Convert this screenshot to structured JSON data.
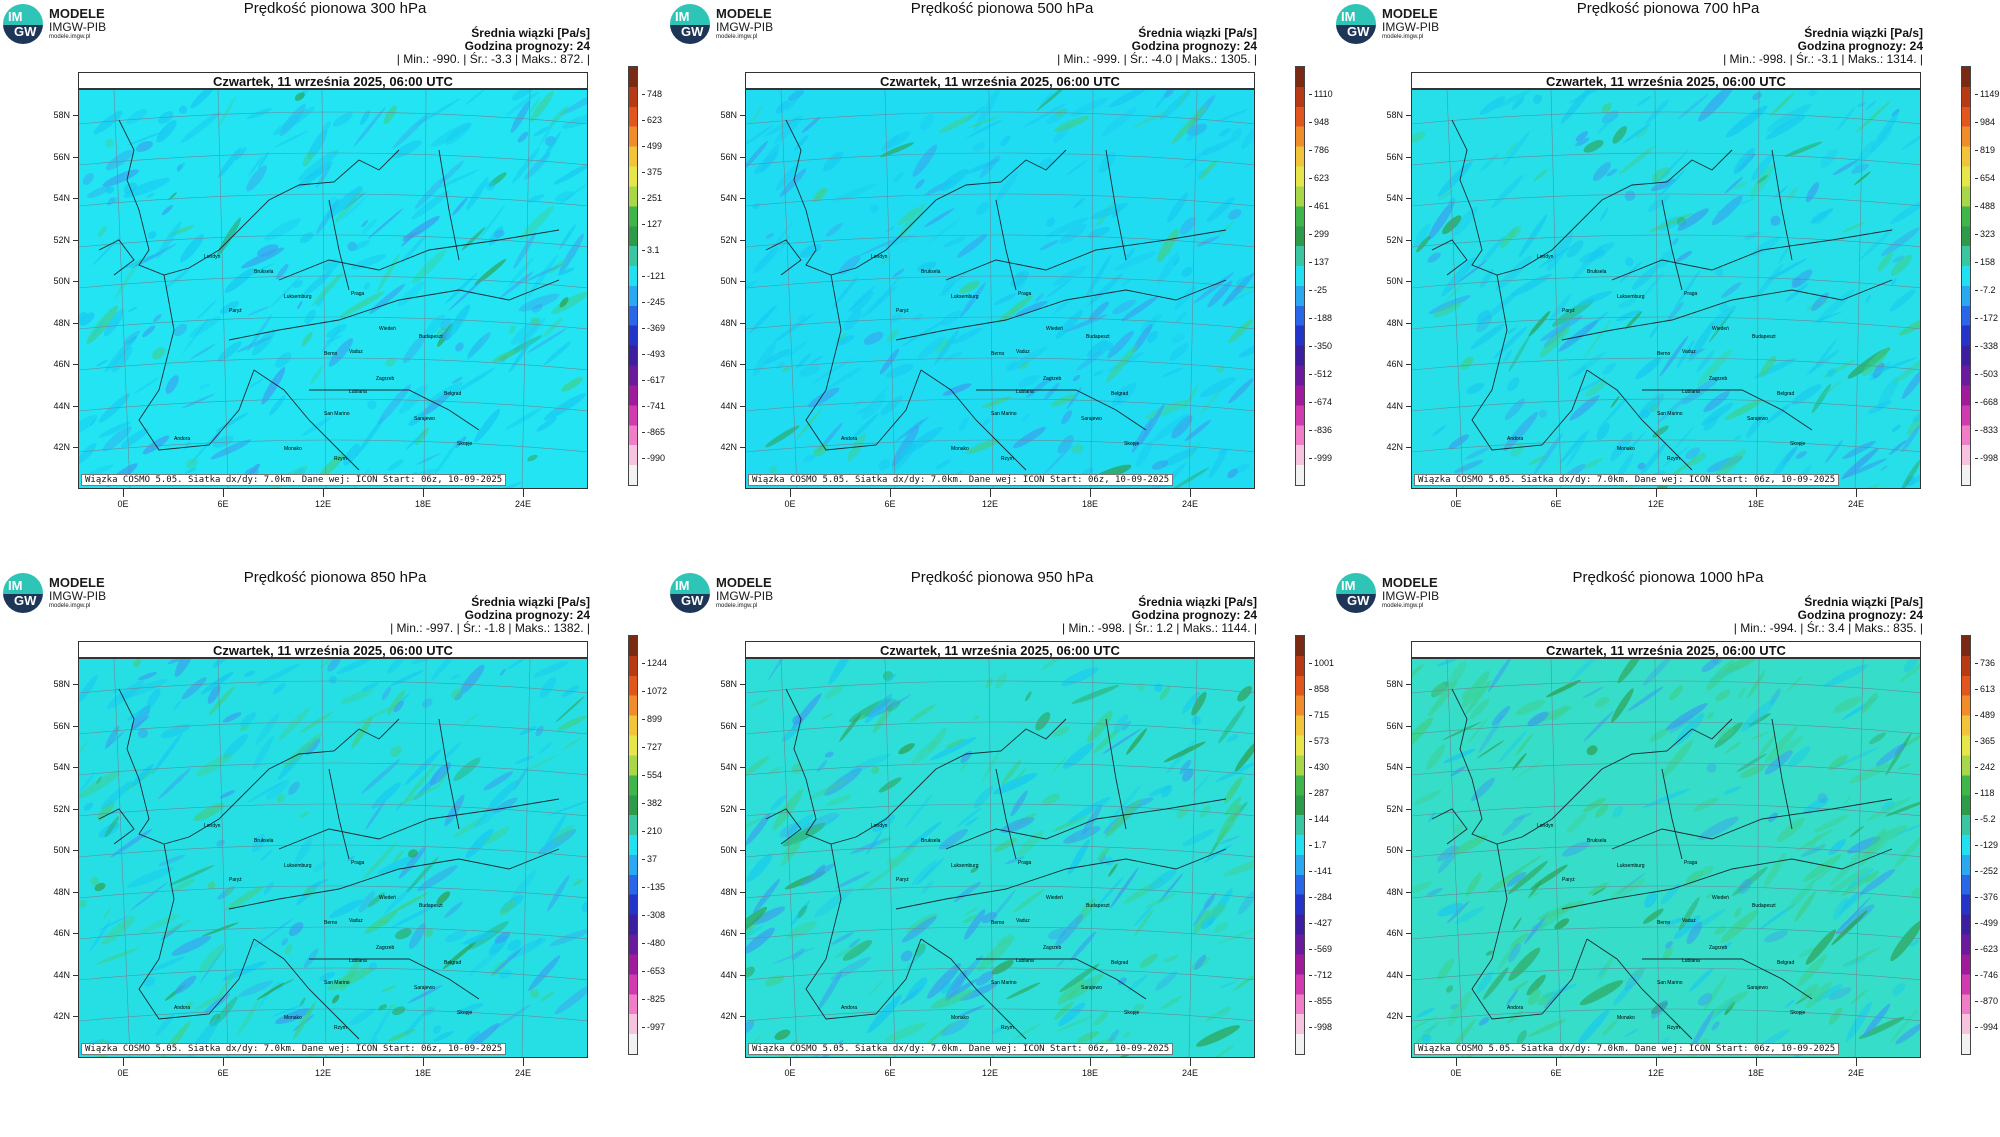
{
  "logo": {
    "line1": "MODELE",
    "line2": "IMGW-PIB",
    "line3": "modele.imgw.pl",
    "badge_top": "IM",
    "badge_bottom": "GW"
  },
  "common": {
    "subtitle": "Średnia wiązki [Pa/s]",
    "forecast_hour": "Godzina prognozy: 24",
    "date": "Czwartek, 11 września 2025, 06:00 UTC",
    "footer": "Wiązka COSMO 5.05. Siatka dx/dy: 7.0km. Dane wej: ICON Start: 06z, 10-09-2025",
    "lat_labels": [
      "58N",
      "56N",
      "54N",
      "52N",
      "50N",
      "48N",
      "46N",
      "44N",
      "42N"
    ],
    "lon_labels": [
      "0E",
      "6E",
      "12E",
      "18E",
      "24E"
    ],
    "cities": [
      "Londyn",
      "Bruksela",
      "Luksemburg",
      "Paryż",
      "Praga",
      "Wiedeń",
      "Budapeszt",
      "Berno",
      "Vaduz",
      "Zagrzeb",
      "Lublana",
      "San Marino",
      "Belgrad",
      "Sarajewo",
      "Skopje",
      "Andora",
      "Rzym",
      "Monako"
    ]
  },
  "panels": [
    {
      "title": "Prędkość pionowa 300 hPa",
      "stats": "| Min.:   -990. | Śr.:   -3.3 | Maks.:   872. |",
      "scale": [
        "748",
        "623",
        "499",
        "375",
        "251",
        "127",
        "3.1",
        "-121",
        "-245",
        "-369",
        "-493",
        "-617",
        "-741",
        "-865",
        "-990"
      ],
      "tint": "#22e4f2",
      "green": 0.25
    },
    {
      "title": "Prędkość pionowa 500 hPa",
      "stats": "| Min.:   -999. | Śr.:   -4.0 | Maks.:   1305. |",
      "scale": [
        "1110",
        "948",
        "786",
        "623",
        "461",
        "299",
        "137",
        "-25",
        "-188",
        "-350",
        "-512",
        "-674",
        "-836",
        "-999"
      ],
      "tint": "#20dcf2",
      "green": 0.3
    },
    {
      "title": "Prędkość pionowa 700 hPa",
      "stats": "| Min.:   -998. | Śr.:   -3.1 | Maks.:   1314. |",
      "scale": [
        "1149",
        "984",
        "819",
        "654",
        "488",
        "323",
        "158",
        "-7.2",
        "-172",
        "-338",
        "-503",
        "-668",
        "-833",
        "-998"
      ],
      "tint": "#26dfe8",
      "green": 0.45
    },
    {
      "title": "Prędkość pionowa 850 hPa",
      "stats": "| Min.:   -997. | Śr.:   -1.8 | Maks.:   1382. |",
      "scale": [
        "1244",
        "1072",
        "899",
        "727",
        "554",
        "382",
        "210",
        "37",
        "-135",
        "-308",
        "-480",
        "-653",
        "-825",
        "-997"
      ],
      "tint": "#26dfe4",
      "green": 0.6
    },
    {
      "title": "Prędkość pionowa 950 hPa",
      "stats": "| Min.:   -998. | Śr.:   1.2 | Maks.:   1144. |",
      "scale": [
        "1001",
        "858",
        "715",
        "573",
        "430",
        "287",
        "144",
        "1.7",
        "-141",
        "-284",
        "-427",
        "-569",
        "-712",
        "-855",
        "-998"
      ],
      "tint": "#2ddfd8",
      "green": 0.8
    },
    {
      "title": "Prędkość pionowa 1000 hPa",
      "stats": "| Min.:   -994. | Śr.:   3.4 | Maks.:   835. |",
      "scale": [
        "736",
        "613",
        "489",
        "365",
        "242",
        "118",
        "-5.2",
        "-129",
        "-252",
        "-376",
        "-499",
        "-623",
        "-746",
        "-870",
        "-994"
      ],
      "tint": "#36ddc8",
      "green": 0.9
    }
  ]
}
